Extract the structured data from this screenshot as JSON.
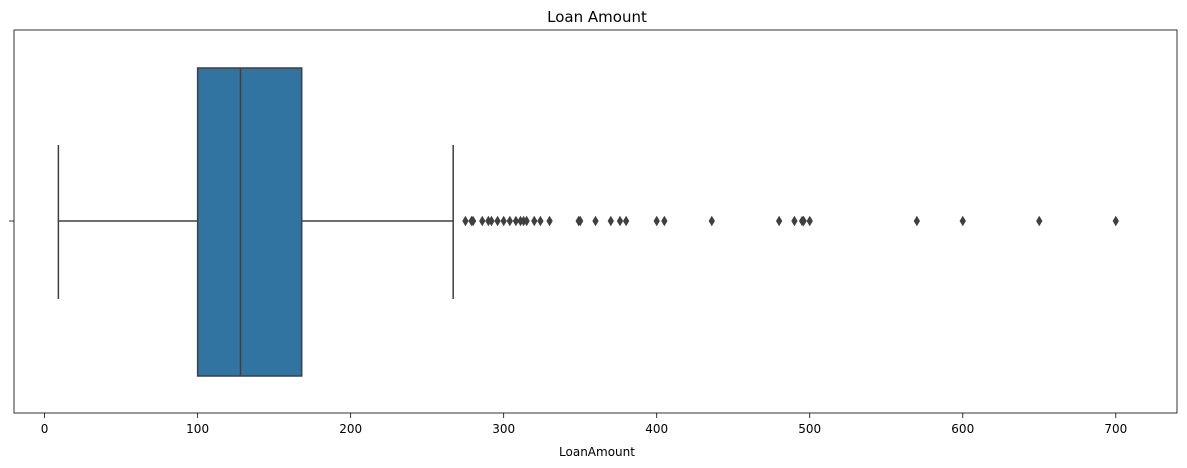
{
  "chart_data": {
    "type": "boxplot",
    "title": "Loan Amount",
    "xlabel": "LoanAmount",
    "ylabel": "",
    "xlim": [
      -20,
      740
    ],
    "x_ticks": [
      0,
      100,
      200,
      300,
      400,
      500,
      600,
      700
    ],
    "orientation": "horizontal",
    "grid": false,
    "colors": {
      "box_fill": "#3274a1",
      "line": "#3f3f3f"
    },
    "box": {
      "whisker_low": 9,
      "q1": 100,
      "median": 128,
      "q3": 168,
      "whisker_high": 267
    },
    "outliers": [
      275,
      279,
      280,
      286,
      290,
      292,
      296,
      300,
      304,
      308,
      311,
      313,
      315,
      320,
      324,
      330,
      349,
      350,
      360,
      370,
      376,
      380,
      400,
      405,
      436,
      480,
      490,
      495,
      496,
      500,
      570,
      600,
      650,
      700
    ]
  }
}
